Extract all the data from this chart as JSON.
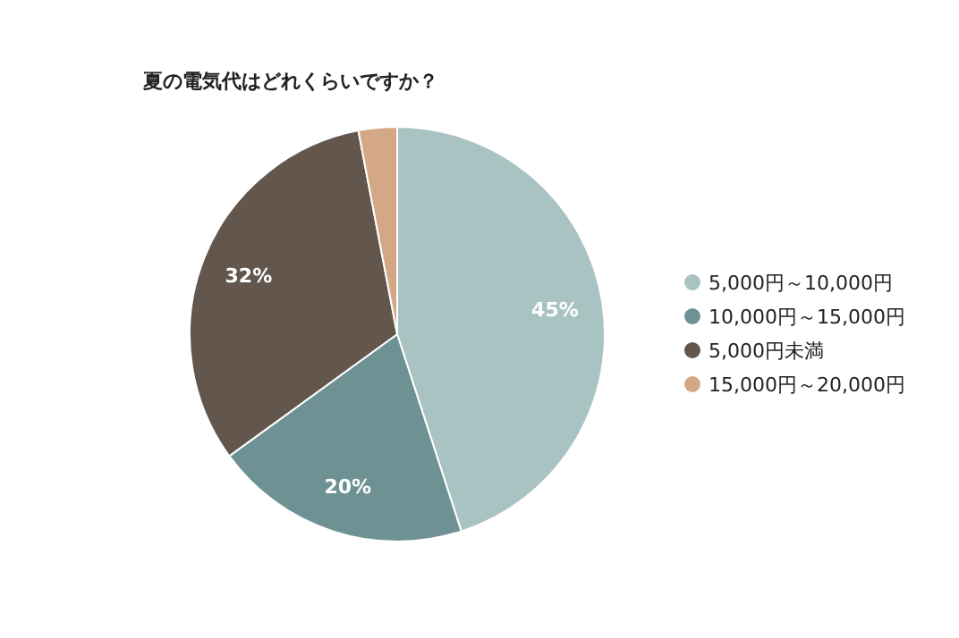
{
  "chart_data": {
    "type": "pie",
    "title": "夏の電気代はどれくらいですか？",
    "categories": [
      "5,000円～10,000円",
      "10,000円～15,000円",
      "5,000円未満",
      "15,000円～20,000円"
    ],
    "values": [
      45,
      20,
      32,
      3
    ],
    "colors": [
      "#a9c2c2",
      "#6e9193",
      "#62564d",
      "#d4a886"
    ],
    "value_labels": [
      "45%",
      "20%",
      "32%",
      null
    ],
    "legend": "right"
  }
}
